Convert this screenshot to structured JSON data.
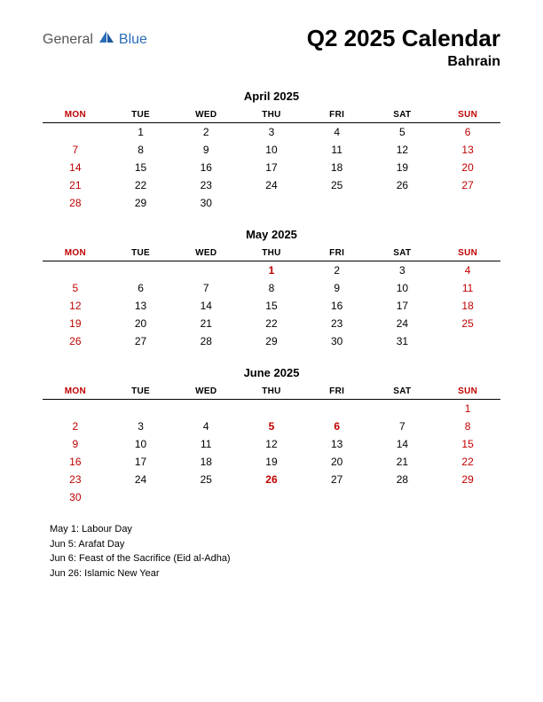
{
  "logo": {
    "text1": "General",
    "text2": "Blue"
  },
  "title": "Q2 2025 Calendar",
  "subtitle": "Bahrain",
  "colors": {
    "red": "#c00000",
    "logo_blue": "#2a6db8",
    "logo_grey": "#555555",
    "black": "#000000",
    "background": "#ffffff"
  },
  "day_headers": [
    "MON",
    "TUE",
    "WED",
    "THU",
    "FRI",
    "SAT",
    "SUN"
  ],
  "header_red_columns": [
    0,
    6
  ],
  "months": [
    {
      "title": "April 2025",
      "weeks": [
        [
          null,
          {
            "d": 1
          },
          {
            "d": 2
          },
          {
            "d": 3
          },
          {
            "d": 4
          },
          {
            "d": 5
          },
          {
            "d": 6,
            "red": true
          }
        ],
        [
          {
            "d": 7,
            "red": true
          },
          {
            "d": 8
          },
          {
            "d": 9
          },
          {
            "d": 10
          },
          {
            "d": 11
          },
          {
            "d": 12
          },
          {
            "d": 13,
            "red": true
          }
        ],
        [
          {
            "d": 14,
            "red": true
          },
          {
            "d": 15
          },
          {
            "d": 16
          },
          {
            "d": 17
          },
          {
            "d": 18
          },
          {
            "d": 19
          },
          {
            "d": 20,
            "red": true
          }
        ],
        [
          {
            "d": 21,
            "red": true
          },
          {
            "d": 22
          },
          {
            "d": 23
          },
          {
            "d": 24
          },
          {
            "d": 25
          },
          {
            "d": 26
          },
          {
            "d": 27,
            "red": true
          }
        ],
        [
          {
            "d": 28,
            "red": true
          },
          {
            "d": 29
          },
          {
            "d": 30
          },
          null,
          null,
          null,
          null
        ]
      ]
    },
    {
      "title": "May 2025",
      "weeks": [
        [
          null,
          null,
          null,
          {
            "d": 1,
            "red": true,
            "bold": true
          },
          {
            "d": 2
          },
          {
            "d": 3
          },
          {
            "d": 4,
            "red": true
          }
        ],
        [
          {
            "d": 5,
            "red": true
          },
          {
            "d": 6
          },
          {
            "d": 7
          },
          {
            "d": 8
          },
          {
            "d": 9
          },
          {
            "d": 10
          },
          {
            "d": 11,
            "red": true
          }
        ],
        [
          {
            "d": 12,
            "red": true
          },
          {
            "d": 13
          },
          {
            "d": 14
          },
          {
            "d": 15
          },
          {
            "d": 16
          },
          {
            "d": 17
          },
          {
            "d": 18,
            "red": true
          }
        ],
        [
          {
            "d": 19,
            "red": true
          },
          {
            "d": 20
          },
          {
            "d": 21
          },
          {
            "d": 22
          },
          {
            "d": 23
          },
          {
            "d": 24
          },
          {
            "d": 25,
            "red": true
          }
        ],
        [
          {
            "d": 26,
            "red": true
          },
          {
            "d": 27
          },
          {
            "d": 28
          },
          {
            "d": 29
          },
          {
            "d": 30
          },
          {
            "d": 31
          },
          null
        ]
      ]
    },
    {
      "title": "June 2025",
      "weeks": [
        [
          null,
          null,
          null,
          null,
          null,
          null,
          {
            "d": 1,
            "red": true
          }
        ],
        [
          {
            "d": 2,
            "red": true
          },
          {
            "d": 3
          },
          {
            "d": 4
          },
          {
            "d": 5,
            "red": true,
            "bold": true
          },
          {
            "d": 6,
            "red": true,
            "bold": true
          },
          {
            "d": 7
          },
          {
            "d": 8,
            "red": true
          }
        ],
        [
          {
            "d": 9,
            "red": true
          },
          {
            "d": 10
          },
          {
            "d": 11
          },
          {
            "d": 12
          },
          {
            "d": 13
          },
          {
            "d": 14
          },
          {
            "d": 15,
            "red": true
          }
        ],
        [
          {
            "d": 16,
            "red": true
          },
          {
            "d": 17
          },
          {
            "d": 18
          },
          {
            "d": 19
          },
          {
            "d": 20
          },
          {
            "d": 21
          },
          {
            "d": 22,
            "red": true
          }
        ],
        [
          {
            "d": 23,
            "red": true
          },
          {
            "d": 24
          },
          {
            "d": 25
          },
          {
            "d": 26,
            "red": true,
            "bold": true
          },
          {
            "d": 27
          },
          {
            "d": 28
          },
          {
            "d": 29,
            "red": true
          }
        ],
        [
          {
            "d": 30,
            "red": true
          },
          null,
          null,
          null,
          null,
          null,
          null
        ]
      ]
    }
  ],
  "holidays": [
    "May 1: Labour Day",
    "Jun 5: Arafat Day",
    "Jun 6: Feast of the Sacrifice (Eid al-Adha)",
    "Jun 26: Islamic New Year"
  ]
}
